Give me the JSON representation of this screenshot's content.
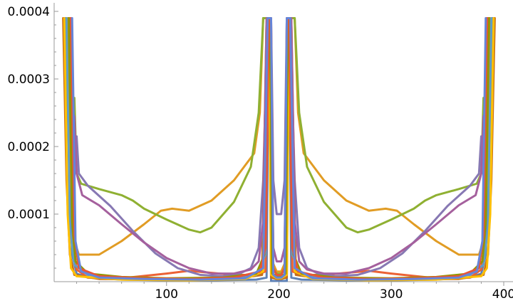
{
  "chart_data": {
    "type": "line",
    "title": "",
    "xlabel": "",
    "ylabel": "",
    "xlim": [
      0,
      400
    ],
    "ylim": [
      0,
      0.0004
    ],
    "x_ticks": [
      100,
      200,
      300,
      400
    ],
    "x_tick_labels": [
      "100",
      "200",
      "300",
      "400"
    ],
    "y_ticks": [
      0.0001,
      0.0002,
      0.0003,
      0.0004
    ],
    "y_tick_labels": [
      "0.0001",
      "0.0002",
      "0.0003",
      "0.0004"
    ],
    "grid": false,
    "legend": "none",
    "symmetric_about_x": 200,
    "series": [
      {
        "color": "#5E81B5",
        "points": [
          [
            10,
            0.00039
          ],
          [
            13,
            0.0002
          ],
          [
            16,
            4e-05
          ],
          [
            20,
            1.2e-05
          ],
          [
            30,
            6e-06
          ],
          [
            60,
            3e-06
          ],
          [
            100,
            2e-06
          ],
          [
            140,
            2e-06
          ],
          [
            180,
            3e-06
          ],
          [
            189,
            6e-06
          ],
          [
            191,
            0.00039
          ],
          [
            192,
            0.00039
          ],
          [
            193,
            1e-06
          ],
          [
            198,
            1e-06
          ]
        ]
      },
      {
        "color": "#E19C24",
        "points": [
          [
            12,
            0.00039
          ],
          [
            15,
            0.00015
          ],
          [
            18,
            6e-05
          ],
          [
            22,
            4e-05
          ],
          [
            40,
            4e-05
          ],
          [
            60,
            6e-05
          ],
          [
            80,
            8.5e-05
          ],
          [
            95,
            0.000105
          ],
          [
            105,
            0.000108
          ],
          [
            120,
            0.000105
          ],
          [
            140,
            0.00012
          ],
          [
            160,
            0.00015
          ],
          [
            178,
            0.00019
          ],
          [
            183,
            0.00025
          ],
          [
            186,
            0.00039
          ],
          [
            190,
            0.00039
          ],
          [
            194,
            3e-05
          ],
          [
            198,
            1.5e-05
          ]
        ]
      },
      {
        "color": "#8FB032",
        "points": [
          [
            18,
            0.000272
          ],
          [
            20,
            0.00016
          ],
          [
            24,
            0.000145
          ],
          [
            40,
            0.000137
          ],
          [
            60,
            0.000128
          ],
          [
            70,
            0.00012
          ],
          [
            80,
            0.000108
          ],
          [
            100,
            9.2e-05
          ],
          [
            120,
            7.7e-05
          ],
          [
            130,
            7.3e-05
          ],
          [
            140,
            8e-05
          ],
          [
            160,
            0.000118
          ],
          [
            175,
            0.00017
          ],
          [
            182,
            0.00025
          ],
          [
            186,
            0.00039
          ],
          [
            190,
            0.00039
          ],
          [
            194,
            2e-05
          ],
          [
            198,
            1.2e-05
          ]
        ]
      },
      {
        "color": "#EB6235",
        "points": [
          [
            14,
            0.00039
          ],
          [
            17,
            6e-05
          ],
          [
            20,
            1.8e-05
          ],
          [
            30,
            6e-06
          ],
          [
            60,
            5e-06
          ],
          [
            100,
            1.2e-05
          ],
          [
            120,
            1.6e-05
          ],
          [
            140,
            1.3e-05
          ],
          [
            160,
            1e-05
          ],
          [
            180,
            1e-05
          ],
          [
            188,
            1.5e-05
          ],
          [
            191,
            0.00039
          ],
          [
            193,
            0.0003
          ],
          [
            195,
            2e-05
          ],
          [
            198,
            1e-05
          ]
        ]
      },
      {
        "color": "#8778B3",
        "points": [
          [
            20,
            0.000215
          ],
          [
            22,
            0.00016
          ],
          [
            30,
            0.000142
          ],
          [
            50,
            0.000112
          ],
          [
            70,
            7.5e-05
          ],
          [
            90,
            4.2e-05
          ],
          [
            110,
            2e-05
          ],
          [
            130,
            1e-05
          ],
          [
            150,
            8e-06
          ],
          [
            165,
            1.2e-05
          ],
          [
            175,
            2e-05
          ],
          [
            182,
            5e-05
          ],
          [
            186,
            0.00015
          ],
          [
            190,
            0.00039
          ],
          [
            193,
            0.00039
          ],
          [
            195,
            0.00015
          ],
          [
            198,
            0.0001
          ]
        ]
      },
      {
        "color": "#C56E1A",
        "points": [
          [
            8,
            0.00039
          ],
          [
            11,
            0.00015
          ],
          [
            14,
            4e-05
          ],
          [
            18,
            1e-05
          ],
          [
            40,
            4e-06
          ],
          [
            100,
            3e-06
          ],
          [
            160,
            4e-06
          ],
          [
            185,
            1e-05
          ],
          [
            189,
            0.00039
          ],
          [
            191,
            0.00039
          ],
          [
            193,
            6e-06
          ],
          [
            198,
            4e-06
          ]
        ]
      },
      {
        "color": "#5D9EC7",
        "points": [
          [
            11,
            0.00039
          ],
          [
            14,
            8e-05
          ],
          [
            18,
            2.5e-05
          ],
          [
            30,
            1e-05
          ],
          [
            60,
            6e-06
          ],
          [
            100,
            4e-06
          ],
          [
            150,
            5e-06
          ],
          [
            180,
            1e-05
          ],
          [
            188,
            4e-05
          ],
          [
            190,
            0.00039
          ],
          [
            192,
            0.00039
          ],
          [
            194,
            1e-05
          ],
          [
            198,
            5e-06
          ]
        ]
      },
      {
        "color": "#FFBF00",
        "points": [
          [
            9,
            0.00039
          ],
          [
            12,
            0.0001
          ],
          [
            15,
            2e-05
          ],
          [
            20,
            8e-06
          ],
          [
            60,
            3e-06
          ],
          [
            120,
            2e-06
          ],
          [
            170,
            4e-06
          ],
          [
            186,
            1.5e-05
          ],
          [
            189,
            0.00039
          ],
          [
            191,
            0.00039
          ],
          [
            193,
            1e-05
          ],
          [
            198,
            5e-06
          ]
        ]
      },
      {
        "color": "#A5609D",
        "points": [
          [
            18,
            0.000245
          ],
          [
            20,
            0.00016
          ],
          [
            25,
            0.000128
          ],
          [
            40,
            0.000113
          ],
          [
            60,
            8.5e-05
          ],
          [
            80,
            5.8e-05
          ],
          [
            100,
            3.5e-05
          ],
          [
            120,
            2e-05
          ],
          [
            140,
            1.2e-05
          ],
          [
            160,
            1.2e-05
          ],
          [
            175,
            1.8e-05
          ],
          [
            182,
            3e-05
          ],
          [
            186,
            9e-05
          ],
          [
            189,
            0.00039
          ],
          [
            192,
            0.00039
          ],
          [
            195,
            5e-05
          ],
          [
            198,
            3e-05
          ]
        ]
      },
      {
        "color": "#929600",
        "points": [
          [
            13,
            0.00039
          ],
          [
            16,
            9e-05
          ],
          [
            19,
            3e-05
          ],
          [
            30,
            1.2e-05
          ],
          [
            60,
            7e-06
          ],
          [
            100,
            5e-06
          ],
          [
            150,
            6e-06
          ],
          [
            180,
            1.2e-05
          ],
          [
            187,
            4e-05
          ],
          [
            190,
            0.00039
          ],
          [
            192,
            0.00039
          ],
          [
            194,
            1.2e-05
          ],
          [
            198,
            8e-06
          ]
        ]
      },
      {
        "color": "#E95536",
        "points": [
          [
            15,
            0.00039
          ],
          [
            18,
            7e-05
          ],
          [
            22,
            2e-05
          ],
          [
            40,
            8e-06
          ],
          [
            80,
            5e-06
          ],
          [
            120,
            4e-06
          ],
          [
            160,
            6e-06
          ],
          [
            183,
            1.5e-05
          ],
          [
            188,
            5e-05
          ],
          [
            191,
            0.00039
          ],
          [
            193,
            0.00039
          ],
          [
            195,
            2e-05
          ],
          [
            198,
            1e-05
          ]
        ]
      },
      {
        "color": "#6685D9",
        "points": [
          [
            16,
            0.00039
          ],
          [
            19,
            6e-05
          ],
          [
            24,
            1.5e-05
          ],
          [
            40,
            6e-06
          ],
          [
            80,
            4e-06
          ],
          [
            130,
            3e-06
          ],
          [
            170,
            5e-06
          ],
          [
            186,
            2e-05
          ],
          [
            190,
            0.00039
          ],
          [
            193,
            0.00039
          ],
          [
            195,
            1e-05
          ],
          [
            198,
            6e-06
          ]
        ]
      }
    ]
  }
}
